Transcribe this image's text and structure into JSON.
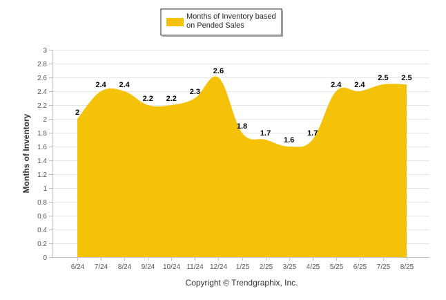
{
  "chart_data": {
    "type": "area",
    "categories": [
      "6/24",
      "7/24",
      "8/24",
      "9/24",
      "10/24",
      "11/24",
      "12/24",
      "1/25",
      "2/25",
      "3/25",
      "4/25",
      "5/25",
      "6/25",
      "7/25",
      "8/25"
    ],
    "series": [
      {
        "name": "Months of Inventory based on Pended Sales",
        "values": [
          2,
          2.4,
          2.4,
          2.2,
          2.2,
          2.3,
          2.6,
          1.8,
          1.7,
          1.6,
          1.7,
          2.4,
          2.4,
          2.5,
          2.5
        ],
        "color": "#F5C20A"
      }
    ],
    "data_labels": [
      "2",
      "2.4",
      "2.4",
      "2.2",
      "2.2",
      "2.3",
      "2.6",
      "1.8",
      "1.7",
      "1.6",
      "1.7",
      "2.4",
      "2.4",
      "2.5",
      "2.5"
    ],
    "ylabel": "Months of Inventory",
    "xlabel": "",
    "ylim": [
      0,
      3
    ],
    "yticks": [
      "0",
      "0.2",
      "0.4",
      "0.6",
      "0.8",
      "1",
      "1.2",
      "1.4",
      "1.6",
      "1.8",
      "2",
      "2.2",
      "2.4",
      "2.6",
      "2.8",
      "3"
    ],
    "grid": true,
    "legend": {
      "position": "top-center",
      "text_lines": [
        "Months of Inventory based",
        "on Pended Sales"
      ]
    },
    "footer": "Copyright © Trendgraphix, Inc."
  }
}
